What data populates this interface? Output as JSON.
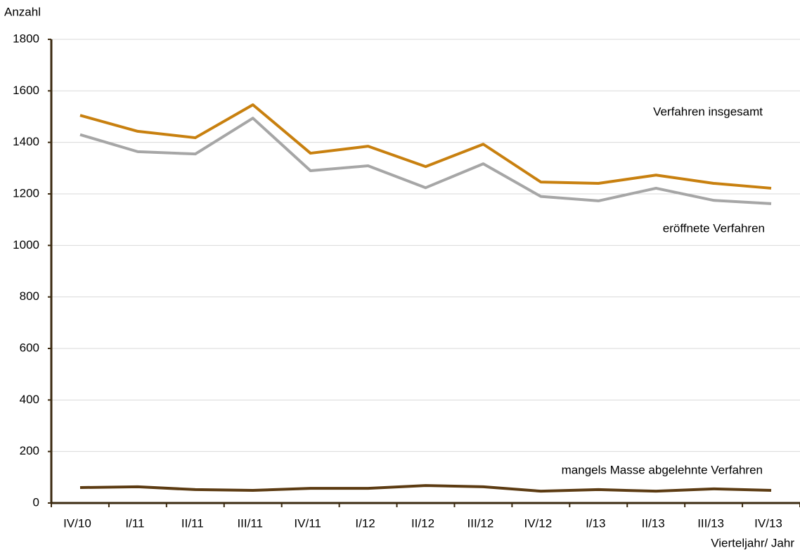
{
  "chart_data": {
    "type": "line",
    "y_label": "Anzahl",
    "x_label": "Vierteljahr/ Jahr",
    "categories": [
      "IV/10",
      "I/11",
      "II/11",
      "III/11",
      "IV/11",
      "I/12",
      "II/12",
      "III/12",
      "IV/12",
      "I/13",
      "II/13",
      "III/13",
      "IV/13"
    ],
    "series": [
      {
        "name": "Verfahren insgesamt",
        "color": "#c8800f",
        "values": [
          1505,
          1443,
          1418,
          1546,
          1358,
          1385,
          1306,
          1393,
          1246,
          1241,
          1273,
          1241,
          1222
        ]
      },
      {
        "name": "eröffnete Verfahren",
        "color": "#a6a6a6",
        "values": [
          1430,
          1364,
          1355,
          1494,
          1290,
          1309,
          1224,
          1317,
          1190,
          1173,
          1222,
          1175,
          1162
        ]
      },
      {
        "name": "mangels Masse abgelehnte Verfahren",
        "color": "#5c3b12",
        "values": [
          60,
          63,
          52,
          49,
          57,
          57,
          68,
          63,
          46,
          52,
          46,
          55,
          49
        ]
      }
    ],
    "ylim": [
      0,
      1800
    ],
    "yticks": [
      0,
      200,
      400,
      600,
      800,
      1000,
      1200,
      1400,
      1600,
      1800
    ],
    "grid": true
  }
}
